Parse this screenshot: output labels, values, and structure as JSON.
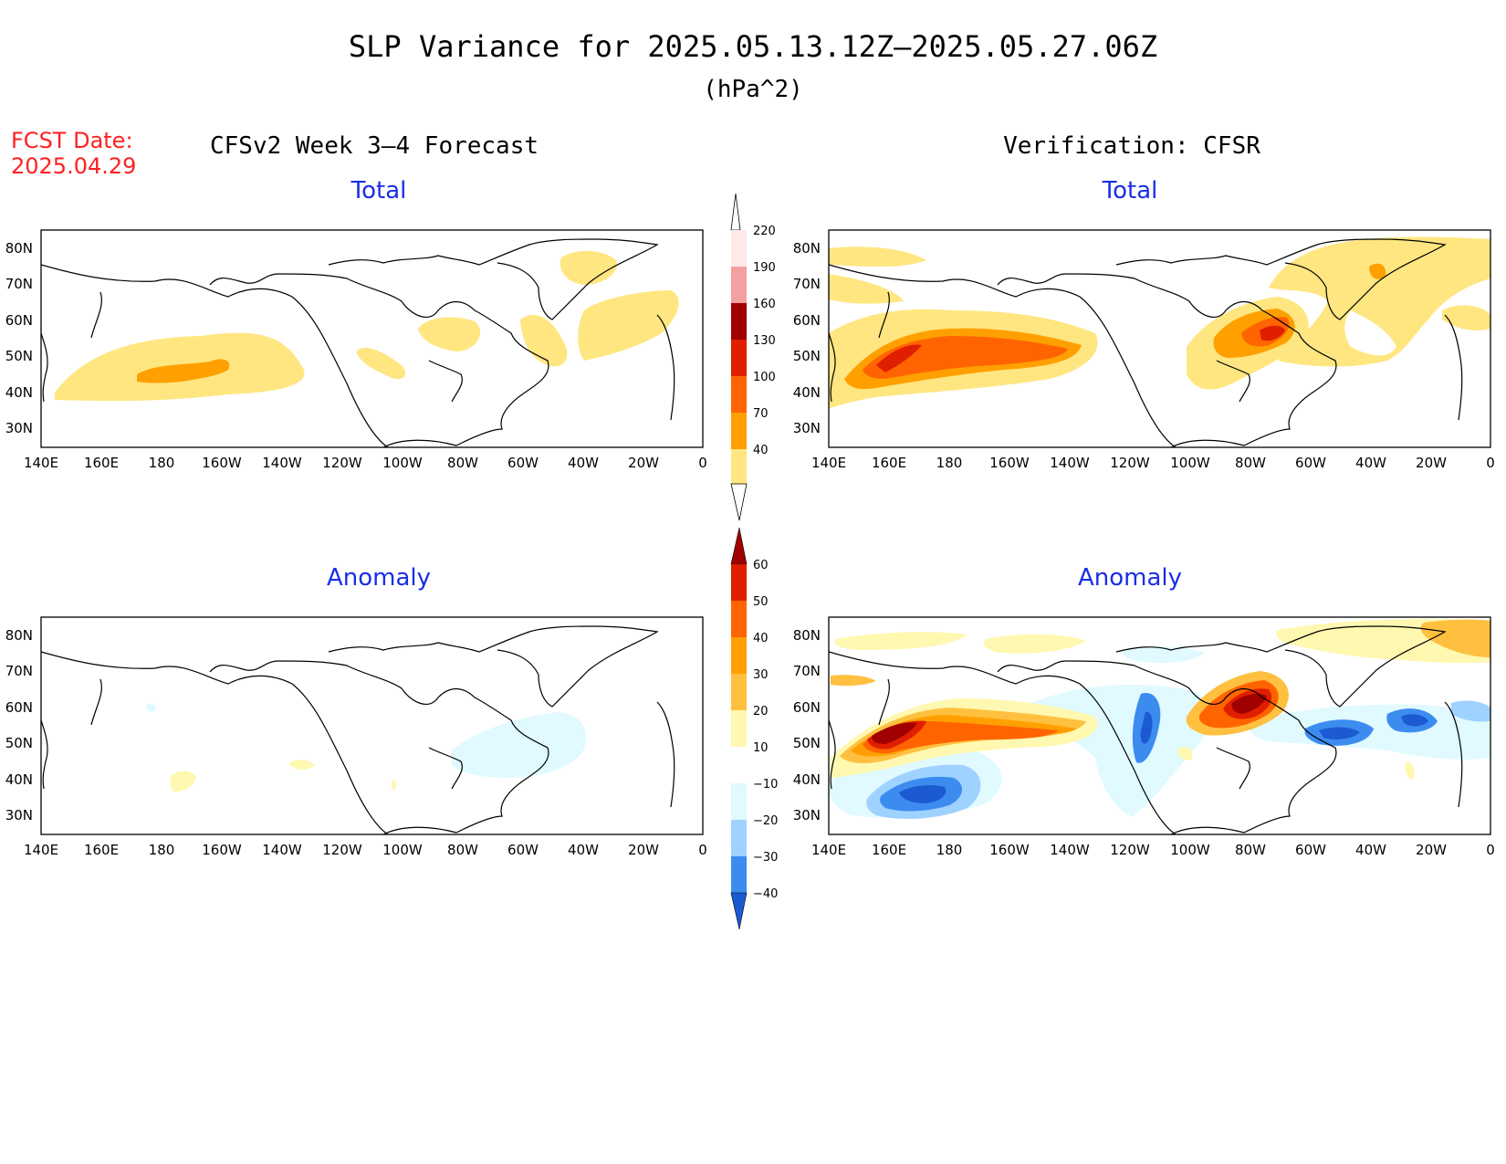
{
  "title": "SLP Variance for 2025.05.13.12Z–2025.05.27.06Z",
  "units": "(hPa^2)",
  "fcst_date_label": "FCST Date:",
  "fcst_date": "2025.04.29",
  "left_header": "CFSv2 Week 3–4 Forecast",
  "right_header": "Verification: CFSR",
  "panel_titles": {
    "forecast_total": "Total",
    "verification_total": "Total",
    "forecast_anomaly": "Anomaly",
    "verification_anomaly": "Anomaly"
  },
  "colors": {
    "title": "#000000",
    "fcst_date": "#ff2020",
    "panel_title": "#1a2ee8",
    "coast": "#000000"
  },
  "lon_labels": [
    "140E",
    "160E",
    "180",
    "160W",
    "140W",
    "120W",
    "100W",
    "80W",
    "60W",
    "40W",
    "20W",
    "0"
  ],
  "lat_labels": [
    "80N",
    "70N",
    "60N",
    "50N",
    "40N",
    "30N"
  ],
  "total_colorbar": {
    "labels": [
      "220",
      "190",
      "160",
      "130",
      "100",
      "70",
      "40"
    ],
    "colors": [
      "#ffe8e8",
      "#f2a0a0",
      "#a00000",
      "#e01e00",
      "#ff6400",
      "#ffa000",
      "#ffe680"
    ]
  },
  "anomaly_colorbar": {
    "labels": [
      "60",
      "50",
      "40",
      "30",
      "20",
      "10",
      "−10",
      "−20",
      "−30",
      "−40"
    ],
    "colors": [
      "#a00000",
      "#e01e00",
      "#ff6400",
      "#ffa000",
      "#ffc040",
      "#fff8b0",
      "#ffffff",
      "#e0faff",
      "#a0d2ff",
      "#3c8cf0",
      "#1c5ad2"
    ]
  }
}
